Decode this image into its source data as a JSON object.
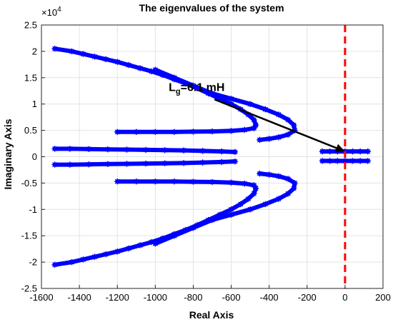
{
  "chart_data": {
    "type": "scatter",
    "title": "The eigenvalues of the system",
    "xlabel": "Real Axis",
    "ylabel": "Imaginary Axis",
    "xlim": [
      -1600,
      200
    ],
    "ylim": [
      -25000,
      25000
    ],
    "xticks": [
      "-1600",
      "-1400",
      "-1200",
      "-1000",
      "-800",
      "-600",
      "-400",
      "-200",
      "0",
      "200"
    ],
    "yticks": [
      "-2.5",
      "-2",
      "-1.5",
      "-1",
      "-0.5",
      "0",
      "0.5",
      "1",
      "1.5",
      "2",
      "2.5"
    ],
    "y_exponent_label": "×10",
    "y_exponent_power": "4",
    "grid": true,
    "marker": "*",
    "marker_color": "#0000ff",
    "vertical_line": {
      "x": 0,
      "color": "#ff0000",
      "style": "dashed"
    },
    "annotation": {
      "text_main": "L",
      "text_sub": "g",
      "text_rest": "=6.1 mH",
      "arrow_to": [
        0,
        1000
      ],
      "text_at": [
        -500,
        12500
      ]
    },
    "series": [
      {
        "values": [
          [
            -1530,
            20500
          ],
          [
            -1440,
            20000
          ],
          [
            -1380,
            19500
          ],
          [
            -1320,
            19000
          ],
          [
            -1260,
            18500
          ],
          [
            -1200,
            18000
          ],
          [
            -1140,
            17400
          ],
          [
            -1080,
            16800
          ],
          [
            -1020,
            16200
          ],
          [
            -960,
            15500
          ],
          [
            -900,
            14700
          ],
          [
            -840,
            13900
          ],
          [
            -780,
            13000
          ],
          [
            -720,
            12000
          ],
          [
            -660,
            11000
          ],
          [
            -600,
            10000
          ],
          [
            -550,
            9000
          ],
          [
            -510,
            8000
          ],
          [
            -480,
            7000
          ],
          [
            -470,
            6000
          ],
          [
            -480,
            5400
          ],
          [
            -530,
            5100
          ],
          [
            -600,
            4900
          ],
          [
            -700,
            4800
          ],
          [
            -800,
            4750
          ],
          [
            -900,
            4700
          ],
          [
            -1000,
            4700
          ],
          [
            -1100,
            4700
          ],
          [
            -1200,
            4700
          ]
        ]
      },
      {
        "values": [
          [
            -1530,
            -20500
          ],
          [
            -1440,
            -20000
          ],
          [
            -1380,
            -19500
          ],
          [
            -1320,
            -19000
          ],
          [
            -1260,
            -18500
          ],
          [
            -1200,
            -18000
          ],
          [
            -1140,
            -17400
          ],
          [
            -1080,
            -16800
          ],
          [
            -1020,
            -16200
          ],
          [
            -960,
            -15500
          ],
          [
            -900,
            -14700
          ],
          [
            -840,
            -13900
          ],
          [
            -780,
            -13000
          ],
          [
            -720,
            -12000
          ],
          [
            -660,
            -11000
          ],
          [
            -600,
            -10000
          ],
          [
            -550,
            -9000
          ],
          [
            -510,
            -8000
          ],
          [
            -480,
            -7000
          ],
          [
            -470,
            -6000
          ],
          [
            -480,
            -5400
          ],
          [
            -530,
            -5100
          ],
          [
            -600,
            -4900
          ],
          [
            -700,
            -4800
          ],
          [
            -800,
            -4750
          ],
          [
            -900,
            -4700
          ],
          [
            -1000,
            -4700
          ],
          [
            -1100,
            -4700
          ],
          [
            -1200,
            -4700
          ]
        ]
      },
      {
        "values": [
          [
            -1000,
            16500
          ],
          [
            -900,
            15000
          ],
          [
            -800,
            13500
          ],
          [
            -700,
            12000
          ],
          [
            -600,
            11000
          ],
          [
            -500,
            10000
          ],
          [
            -420,
            9000
          ],
          [
            -350,
            8000
          ],
          [
            -300,
            7000
          ],
          [
            -270,
            6000
          ],
          [
            -265,
            5000
          ],
          [
            -300,
            4200
          ],
          [
            -350,
            3700
          ],
          [
            -400,
            3400
          ],
          [
            -450,
            3200
          ]
        ]
      },
      {
        "values": [
          [
            -1000,
            -16500
          ],
          [
            -900,
            -15000
          ],
          [
            -800,
            -13500
          ],
          [
            -700,
            -12000
          ],
          [
            -600,
            -11000
          ],
          [
            -500,
            -10000
          ],
          [
            -420,
            -9000
          ],
          [
            -350,
            -8000
          ],
          [
            -300,
            -7000
          ],
          [
            -270,
            -6000
          ],
          [
            -265,
            -5000
          ],
          [
            -300,
            -4200
          ],
          [
            -350,
            -3700
          ],
          [
            -400,
            -3400
          ],
          [
            -450,
            -3200
          ]
        ]
      },
      {
        "values": [
          [
            -1530,
            1500
          ],
          [
            -1450,
            1500
          ],
          [
            -1350,
            1450
          ],
          [
            -1250,
            1400
          ],
          [
            -1150,
            1350
          ],
          [
            -1050,
            1300
          ],
          [
            -950,
            1250
          ],
          [
            -850,
            1200
          ],
          [
            -750,
            1100
          ],
          [
            -650,
            1000
          ],
          [
            -580,
            900
          ]
        ]
      },
      {
        "values": [
          [
            -1530,
            -1500
          ],
          [
            -1450,
            -1500
          ],
          [
            -1350,
            -1450
          ],
          [
            -1250,
            -1400
          ],
          [
            -1150,
            -1350
          ],
          [
            -1050,
            -1300
          ],
          [
            -950,
            -1250
          ],
          [
            -850,
            -1200
          ],
          [
            -750,
            -1100
          ],
          [
            -650,
            -1000
          ],
          [
            -580,
            -900
          ]
        ]
      },
      {
        "values": [
          [
            -120,
            1000
          ],
          [
            -80,
            1000
          ],
          [
            -40,
            1000
          ],
          [
            0,
            1000
          ],
          [
            40,
            1000
          ],
          [
            80,
            1000
          ],
          [
            120,
            1000
          ]
        ]
      },
      {
        "values": [
          [
            -120,
            -800
          ],
          [
            -80,
            -800
          ],
          [
            -40,
            -800
          ],
          [
            0,
            -800
          ],
          [
            40,
            -800
          ],
          [
            80,
            -800
          ],
          [
            120,
            -800
          ]
        ]
      }
    ]
  }
}
